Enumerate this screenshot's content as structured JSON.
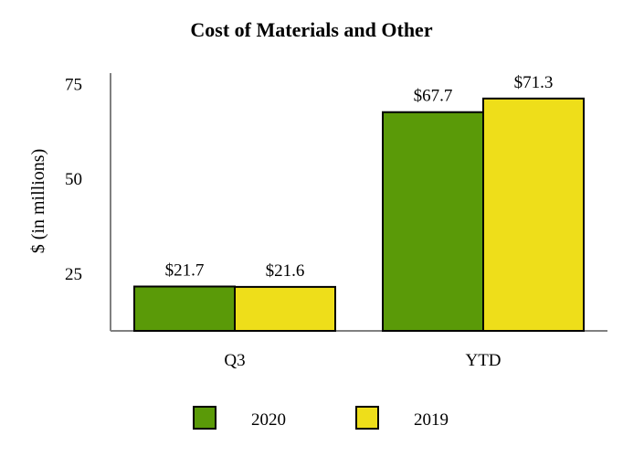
{
  "chart_data": {
    "type": "bar",
    "title": "Cost of Materials and Other",
    "ylabel": "$ (in millions)",
    "xlabel": "",
    "categories": [
      "Q3",
      "YTD"
    ],
    "series": [
      {
        "name": "2020",
        "values": [
          21.7,
          67.7
        ],
        "labels": [
          "$21.7",
          "$67.7"
        ],
        "color": "#5a9a08"
      },
      {
        "name": "2019",
        "values": [
          21.6,
          71.3
        ],
        "labels": [
          "$21.6",
          "$71.3"
        ],
        "color": "#eede1a"
      }
    ],
    "ylim": [
      10,
      78
    ],
    "yticks": [
      25,
      50,
      75
    ],
    "legend_position": "bottom",
    "grid": false
  }
}
